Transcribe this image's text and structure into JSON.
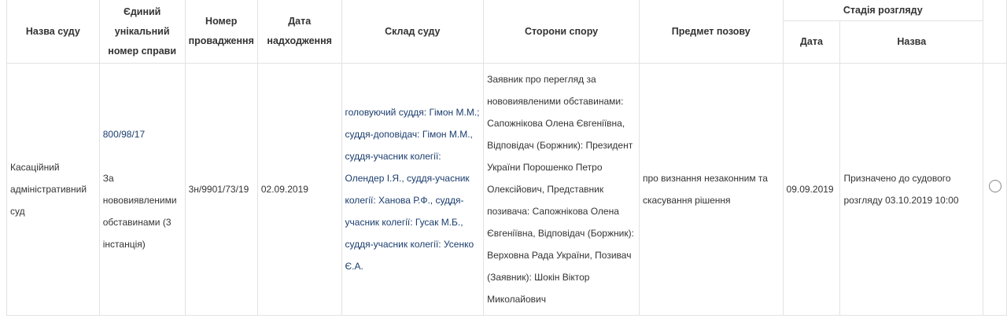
{
  "table": {
    "headers": {
      "court_name": "Назва суду",
      "case_number": "Єдиний унікальний номер справи",
      "proceeding_number": "Номер провадження",
      "receipt_date": "Дата надходження",
      "composition": "Склад суду",
      "parties": "Сторони спору",
      "subject": "Предмет позову",
      "stage": "Стадія розгляду",
      "stage_date": "Дата",
      "stage_name": "Назва"
    },
    "rows": [
      {
        "court_name": "Касаційний адміністративний суд",
        "case_number": "800/98/17",
        "case_type": "За нововиявленими обставинами (3 інстанція)",
        "proceeding_number": "3н/9901/73/19",
        "receipt_date": "02.09.2019",
        "composition": "головуючий суддя: Гімон М.М.; суддя-доповідач: Гімон М.М., суддя-учасник колегії: Олендер І.Я., суддя-учасник колегії: Ханова Р.Ф., суддя-учасник колегії: Гусак М.Б., суддя-учасник колегії: Усенко Є.А.",
        "parties": "Заявник про перегляд за нововиявленими обставинами: Сапожнікова Олена Євгеніївна, Відповідач (Боржник): Президент України Порошенко Петро Олексійович, Представник позивача: Сапожнікова Олена Євгеніївна, Відповідач (Боржник): Верховна Рада України, Позивач (Заявник): Шокін Віктор Миколайович",
        "subject": "про визнання незаконним та скасування рішення",
        "stage_date": "09.09.2019",
        "stage_name": "Призначено до судового розгляду 03.10.2019 10:00",
        "selected": false
      }
    ]
  },
  "colors": {
    "link": "#1b3d6e",
    "border": "#e2e2e2"
  }
}
